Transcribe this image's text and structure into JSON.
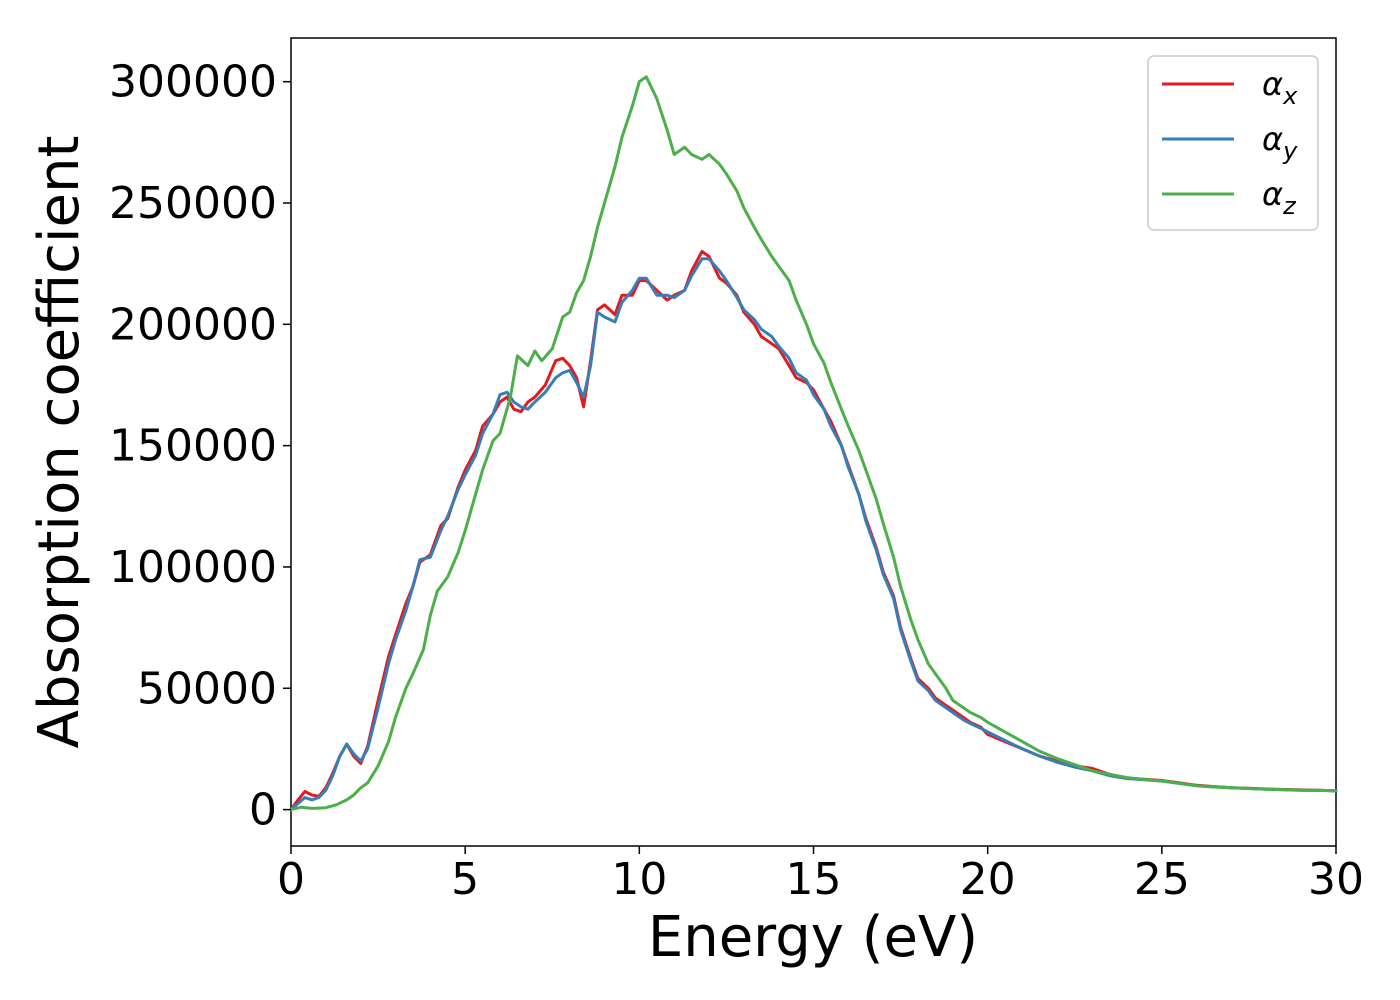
{
  "chart_data": {
    "type": "line",
    "xlabel": "Energy (eV)",
    "ylabel": "Absorption coefficient",
    "xlim": [
      0,
      30
    ],
    "ylim": [
      -15000,
      318000
    ],
    "xticks": [
      0,
      5,
      10,
      15,
      20,
      25,
      30
    ],
    "xtick_labels": [
      "0",
      "5",
      "10",
      "15",
      "20",
      "25",
      "30"
    ],
    "yticks": [
      0,
      50000,
      100000,
      150000,
      200000,
      250000,
      300000
    ],
    "ytick_labels": [
      "0",
      "50000",
      "100000",
      "150000",
      "200000",
      "250000",
      "300000"
    ],
    "grid": false,
    "legend_position": "top-right",
    "series": [
      {
        "name": "α",
        "subscript": "x",
        "color": "#e41a1c",
        "x": [
          0,
          0.2,
          0.4,
          0.6,
          0.8,
          1.0,
          1.2,
          1.4,
          1.6,
          1.8,
          2.0,
          2.2,
          2.5,
          2.8,
          3.0,
          3.3,
          3.5,
          3.7,
          4.0,
          4.3,
          4.5,
          4.8,
          5.0,
          5.3,
          5.5,
          5.8,
          6.0,
          6.2,
          6.4,
          6.6,
          6.8,
          7.0,
          7.3,
          7.6,
          7.8,
          8.0,
          8.2,
          8.4,
          8.6,
          8.8,
          9.0,
          9.3,
          9.5,
          9.8,
          10.0,
          10.2,
          10.5,
          10.8,
          11.0,
          11.3,
          11.5,
          11.8,
          12.0,
          12.3,
          12.5,
          12.8,
          13.0,
          13.3,
          13.5,
          13.8,
          14.0,
          14.3,
          14.5,
          14.8,
          15.0,
          15.3,
          15.5,
          15.8,
          16.0,
          16.3,
          16.5,
          16.8,
          17.0,
          17.3,
          17.5,
          17.8,
          18.0,
          18.3,
          18.5,
          18.8,
          19.0,
          19.3,
          19.5,
          19.8,
          20.0,
          20.5,
          21.0,
          21.5,
          22.0,
          22.5,
          23.0,
          23.5,
          24.0,
          24.5,
          25.0,
          25.5,
          26.0,
          26.5,
          27.0,
          27.5,
          28.0,
          28.5,
          29.0,
          29.5,
          30.0
        ],
        "y": [
          0,
          4000,
          7500,
          6000,
          5500,
          9000,
          15000,
          22000,
          27000,
          22000,
          19000,
          26000,
          45000,
          63000,
          72000,
          85000,
          92000,
          102000,
          105000,
          117000,
          120000,
          133000,
          140000,
          148000,
          158000,
          163000,
          168000,
          170000,
          165000,
          164000,
          168000,
          170000,
          175000,
          185000,
          186000,
          183000,
          178000,
          166000,
          185000,
          206000,
          208000,
          204000,
          212000,
          212000,
          218000,
          218000,
          214000,
          210000,
          212000,
          214000,
          222000,
          230000,
          228000,
          219000,
          217000,
          212000,
          205000,
          200000,
          195000,
          192000,
          190000,
          183000,
          178000,
          176000,
          173000,
          165000,
          160000,
          150000,
          142000,
          130000,
          120000,
          108000,
          98000,
          88000,
          75000,
          62000,
          54000,
          50000,
          46000,
          43000,
          41000,
          38000,
          36000,
          34000,
          31000,
          28000,
          25000,
          22000,
          20000,
          18000,
          17000,
          14500,
          13000,
          12500,
          12000,
          11000,
          10000,
          9500,
          9000,
          8800,
          8500,
          8300,
          8100,
          8000,
          7800
        ]
      },
      {
        "name": "α",
        "subscript": "y",
        "color": "#377eb8",
        "x": [
          0,
          0.2,
          0.4,
          0.6,
          0.8,
          1.0,
          1.2,
          1.4,
          1.6,
          1.8,
          2.0,
          2.2,
          2.5,
          2.8,
          3.0,
          3.3,
          3.5,
          3.7,
          4.0,
          4.3,
          4.5,
          4.8,
          5.0,
          5.3,
          5.5,
          5.8,
          6.0,
          6.2,
          6.4,
          6.6,
          6.8,
          7.0,
          7.3,
          7.6,
          7.8,
          8.0,
          8.2,
          8.4,
          8.6,
          8.8,
          9.0,
          9.3,
          9.5,
          9.8,
          10.0,
          10.2,
          10.5,
          10.8,
          11.0,
          11.3,
          11.5,
          11.8,
          12.0,
          12.3,
          12.5,
          12.8,
          13.0,
          13.3,
          13.5,
          13.8,
          14.0,
          14.3,
          14.5,
          14.8,
          15.0,
          15.3,
          15.5,
          15.8,
          16.0,
          16.3,
          16.5,
          16.8,
          17.0,
          17.3,
          17.5,
          17.8,
          18.0,
          18.3,
          18.5,
          18.8,
          19.0,
          19.3,
          19.5,
          19.8,
          20.0,
          20.5,
          21.0,
          21.5,
          22.0,
          22.5,
          23.0,
          23.5,
          24.0,
          24.5,
          25.0,
          25.5,
          26.0,
          26.5,
          27.0,
          27.5,
          28.0,
          28.5,
          29.0,
          29.5,
          30.0
        ],
        "y": [
          0,
          2500,
          5000,
          4000,
          5000,
          8000,
          14000,
          22000,
          27000,
          23000,
          20000,
          25000,
          42000,
          60000,
          70000,
          82000,
          92000,
          103000,
          104000,
          115000,
          121000,
          132000,
          138000,
          146000,
          155000,
          163000,
          171000,
          172000,
          168000,
          166000,
          165000,
          168000,
          172000,
          178000,
          180000,
          181000,
          176000,
          170000,
          183000,
          205000,
          203000,
          201000,
          209000,
          214000,
          219000,
          219000,
          212000,
          212000,
          211000,
          214000,
          220000,
          227000,
          227000,
          222000,
          218000,
          211000,
          206000,
          202000,
          198000,
          195000,
          191000,
          186000,
          180000,
          177000,
          171000,
          165000,
          158000,
          150000,
          141000,
          130000,
          119000,
          107000,
          97000,
          87000,
          74000,
          61000,
          53000,
          49000,
          45000,
          42000,
          40000,
          37000,
          35500,
          33500,
          32000,
          28500,
          25000,
          22000,
          19500,
          17500,
          16000,
          14000,
          12800,
          12300,
          11800,
          10800,
          9800,
          9400,
          9000,
          8700,
          8400,
          8200,
          8000,
          7900,
          7700
        ]
      },
      {
        "name": "α",
        "subscript": "z",
        "color": "#4daf4a",
        "x": [
          0,
          0.3,
          0.6,
          1.0,
          1.3,
          1.6,
          1.8,
          2.0,
          2.2,
          2.5,
          2.8,
          3.0,
          3.3,
          3.5,
          3.8,
          4.0,
          4.2,
          4.5,
          4.8,
          5.0,
          5.3,
          5.5,
          5.8,
          6.0,
          6.3,
          6.5,
          6.8,
          7.0,
          7.2,
          7.5,
          7.8,
          8.0,
          8.2,
          8.4,
          8.6,
          8.8,
          9.0,
          9.3,
          9.5,
          9.8,
          10.0,
          10.2,
          10.5,
          10.8,
          11.0,
          11.3,
          11.5,
          11.8,
          12.0,
          12.3,
          12.5,
          12.8,
          13.0,
          13.3,
          13.5,
          13.8,
          14.0,
          14.3,
          14.5,
          14.8,
          15.0,
          15.3,
          15.5,
          15.8,
          16.0,
          16.3,
          16.5,
          16.8,
          17.0,
          17.3,
          17.5,
          17.8,
          18.0,
          18.3,
          18.5,
          18.8,
          19.0,
          19.3,
          19.5,
          19.8,
          20.0,
          20.5,
          21.0,
          21.5,
          22.0,
          22.5,
          23.0,
          23.5,
          24.0,
          24.5,
          25.0,
          25.5,
          26.0,
          26.5,
          27.0,
          27.5,
          28.0,
          28.5,
          29.0,
          29.5,
          30.0
        ],
        "y": [
          0,
          1000,
          500,
          800,
          2000,
          4000,
          6000,
          9000,
          11000,
          18000,
          28000,
          38000,
          50000,
          56000,
          66000,
          80000,
          90000,
          96000,
          106000,
          115000,
          130000,
          140000,
          152000,
          155000,
          170000,
          187000,
          183000,
          189000,
          185000,
          190000,
          203000,
          205000,
          213000,
          218000,
          228000,
          240000,
          250000,
          265000,
          277000,
          290000,
          300000,
          302000,
          293000,
          280000,
          270000,
          273000,
          270000,
          268000,
          270000,
          266000,
          262000,
          255000,
          248000,
          240000,
          235000,
          228000,
          224000,
          218000,
          210000,
          200000,
          192000,
          184000,
          176000,
          165000,
          158000,
          148000,
          140000,
          128000,
          118000,
          104000,
          92000,
          78000,
          70000,
          60000,
          56000,
          50000,
          45000,
          42000,
          40000,
          38000,
          36000,
          32000,
          28000,
          24000,
          21000,
          18500,
          16000,
          14500,
          13200,
          12400,
          11800,
          10800,
          9800,
          9300,
          9000,
          8700,
          8400,
          8200,
          8000,
          7900,
          7800
        ]
      }
    ]
  }
}
